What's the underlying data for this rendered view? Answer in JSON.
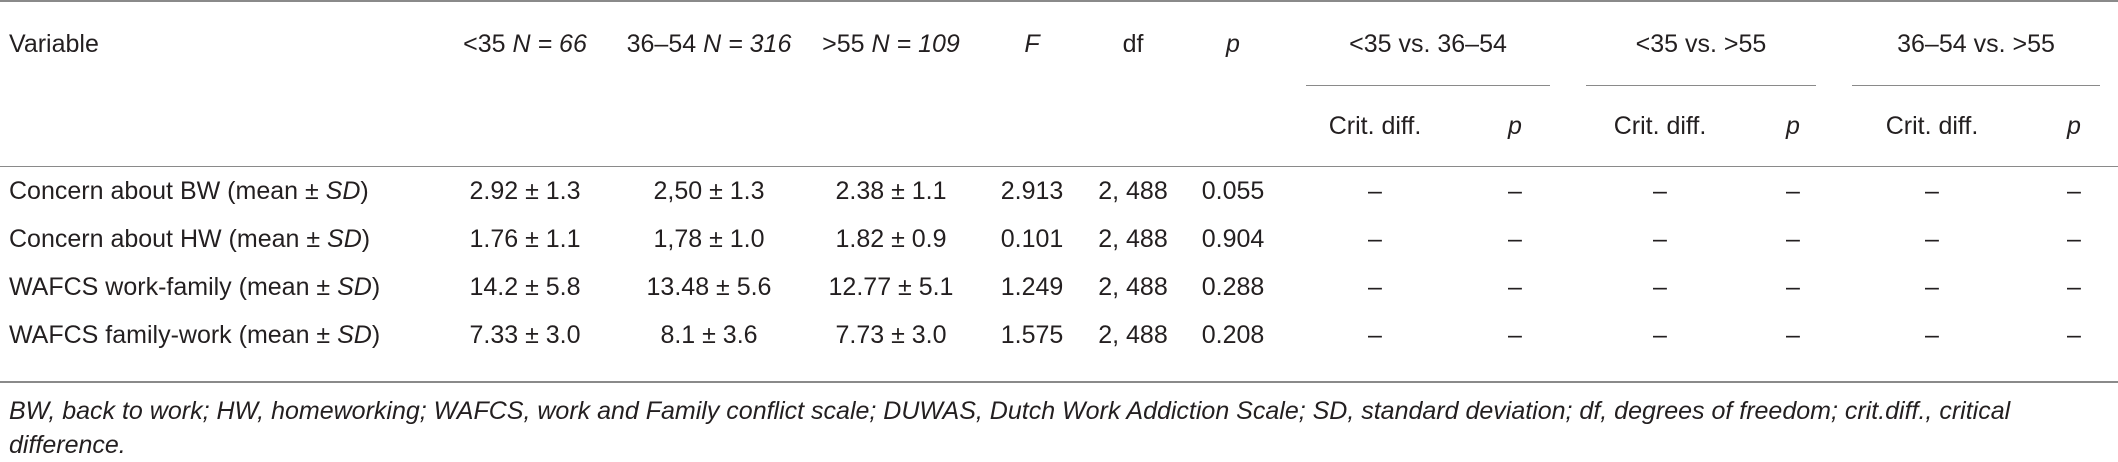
{
  "table": {
    "columns": {
      "variable": "Variable",
      "age_lt35": "<35",
      "age_lt35_n": "N = 66",
      "age_36_54": "36–54",
      "age_36_54_n": "N = 316",
      "age_gt55": ">55",
      "age_gt55_n": "N = 109",
      "f": "F",
      "df": "df",
      "p": "p",
      "group1": "<35 vs. 36–54",
      "group2": "<35 vs. >55",
      "group3": "36–54 vs. >55",
      "crit_diff": "Crit. diff.",
      "sub_p": "p"
    },
    "rows": [
      {
        "label": "Concern about BW (mean ± ",
        "label_it": "SD",
        "label_end": ")",
        "lt35": "2.92 ± 1.3",
        "mid": "2,50 ± 1.3",
        "gt55": "2.38 ± 1.1",
        "f": "2.913",
        "df": "2, 488",
        "p": "0.055",
        "cd1": "–",
        "p1": "–",
        "cd2": "–",
        "p2": "–",
        "cd3": "–",
        "p3": "–"
      },
      {
        "label": "Concern about HW (mean ± ",
        "label_it": "SD",
        "label_end": ")",
        "lt35": "1.76 ± 1.1",
        "mid": "1,78 ± 1.0",
        "gt55": "1.82 ± 0.9",
        "f": "0.101",
        "df": "2, 488",
        "p": "0.904",
        "cd1": "–",
        "p1": "–",
        "cd2": "–",
        "p2": "–",
        "cd3": "–",
        "p3": "–"
      },
      {
        "label": "WAFCS work-family (mean ± ",
        "label_it": "SD",
        "label_end": ")",
        "lt35": "14.2 ± 5.8",
        "mid": "13.48 ± 5.6",
        "gt55": "12.77 ± 5.1",
        "f": "1.249",
        "df": "2, 488",
        "p": "0.288",
        "cd1": "–",
        "p1": "–",
        "cd2": "–",
        "p2": "–",
        "cd3": "–",
        "p3": "–"
      },
      {
        "label": "WAFCS family-work (mean ± ",
        "label_it": "SD",
        "label_end": ")",
        "lt35": "7.33 ± 3.0",
        "mid": "8.1 ± 3.6",
        "gt55": "7.73 ± 3.0",
        "f": "1.575",
        "df": "2, 488",
        "p": "0.208",
        "cd1": "–",
        "p1": "–",
        "cd2": "–",
        "p2": "–",
        "cd3": "–",
        "p3": "–"
      }
    ]
  },
  "footnote": "BW, back to work; HW, homeworking; WAFCS, work and Family conflict scale; DUWAS, Dutch Work Addiction Scale; SD, standard deviation; df, degrees of freedom; crit.diff., critical difference."
}
